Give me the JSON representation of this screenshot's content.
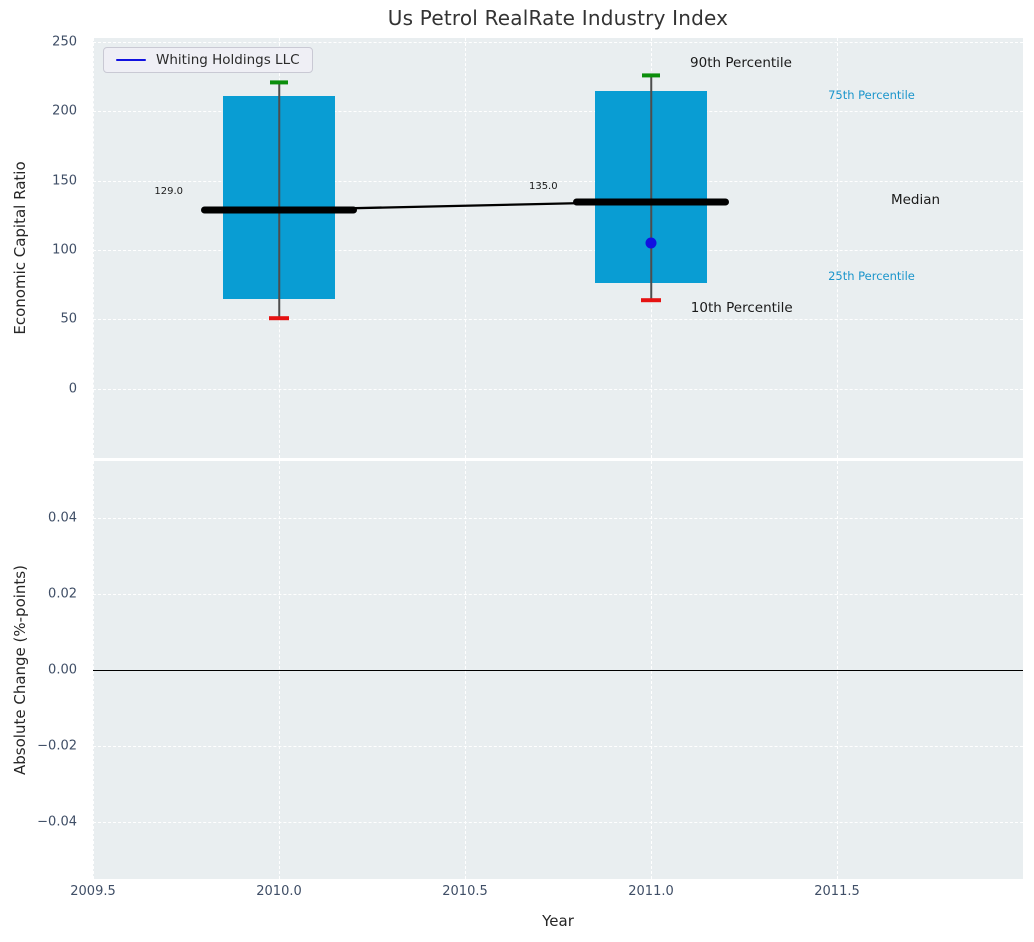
{
  "title": "Us Petrol RealRate Industry Index",
  "legend": {
    "label": "Whiting Holdings LLC",
    "line_color": "#1111e0"
  },
  "colors": {
    "plot_bg": "#e9eef0",
    "grid": "#ffffff",
    "bar": "#099dd3",
    "whisker": "#4d4d4d",
    "p90_cap": "#0b8e0b",
    "p10_cap": "#e51212",
    "median": "#000000",
    "trend": "#000000",
    "company_marker": "#1111e0",
    "tick_label": "#3f4e66",
    "percentile_label_blue": "#1b95cb",
    "annotation_black": "#1a1a1a"
  },
  "chart_data": {
    "type": "bar",
    "subtype": "percentile-box-bars-with-company-overlay",
    "title": "Us Petrol RealRate Industry Index",
    "x_axis": {
      "label": "Year",
      "range": [
        2009.5,
        2012.0
      ],
      "ticks": [
        2009.5,
        2010.0,
        2010.5,
        2011.0,
        2011.5
      ],
      "tick_labels": [
        "2009.5",
        "2010.0",
        "2010.5",
        "2011.0",
        "2011.5"
      ]
    },
    "top_panel": {
      "y_axis": {
        "label": "Economic Capital Ratio",
        "range": [
          -50,
          253
        ],
        "ticks": [
          0,
          50,
          100,
          150,
          200,
          250
        ],
        "tick_labels": [
          "0",
          "50",
          "100",
          "150",
          "200",
          "250"
        ]
      },
      "grid": "dashed-white",
      "bar_width_years": 0.3,
      "median_halfwidth_years": 0.21,
      "boxes": [
        {
          "x": 2010,
          "p10": 51,
          "p25": 65,
          "median": 129,
          "p75": 211,
          "p90": 221,
          "median_label": "129.0"
        },
        {
          "x": 2011,
          "p10": 64,
          "p25": 76,
          "median": 135,
          "p75": 215,
          "p90": 226,
          "median_label": "135.0"
        }
      ],
      "median_trend": [
        {
          "x": 2010,
          "y": 129
        },
        {
          "x": 2011,
          "y": 135
        }
      ],
      "company_series": {
        "name": "Whiting Holdings LLC",
        "points": [
          {
            "x": 2011,
            "y": 105
          }
        ]
      },
      "annotations": [
        {
          "text": "129.0",
          "x": 2009.665,
          "y": 146,
          "size": 10,
          "color": "#1a1a1a"
        },
        {
          "text": "135.0",
          "x": 2010.672,
          "y": 150,
          "size": 10,
          "color": "#1a1a1a"
        },
        {
          "text": "90th Percentile",
          "x": 2011.105,
          "y": 241,
          "size": 13.5,
          "color": "#1a1a1a"
        },
        {
          "text": "75th Percentile",
          "x": 2011.476,
          "y": 217,
          "size": 11.5,
          "color": "#1b95cb"
        },
        {
          "text": "Median",
          "x": 2011.645,
          "y": 142,
          "size": 13.5,
          "color": "#1a1a1a"
        },
        {
          "text": "25th Percentile",
          "x": 2011.476,
          "y": 86,
          "size": 11.5,
          "color": "#1b95cb"
        },
        {
          "text": "10th Percentile",
          "x": 2011.107,
          "y": 64,
          "size": 13.5,
          "color": "#1a1a1a"
        }
      ]
    },
    "bottom_panel": {
      "y_axis": {
        "label": "Absolute Change (%-points)",
        "range": [
          -0.055,
          0.055
        ],
        "ticks": [
          -0.04,
          -0.02,
          0.0,
          0.02,
          0.04
        ],
        "tick_labels": [
          "−0.04",
          "−0.02",
          "0.00",
          "0.02",
          "0.04"
        ]
      },
      "grid": "dashed-white",
      "zero_line": 0.0,
      "series": []
    }
  }
}
